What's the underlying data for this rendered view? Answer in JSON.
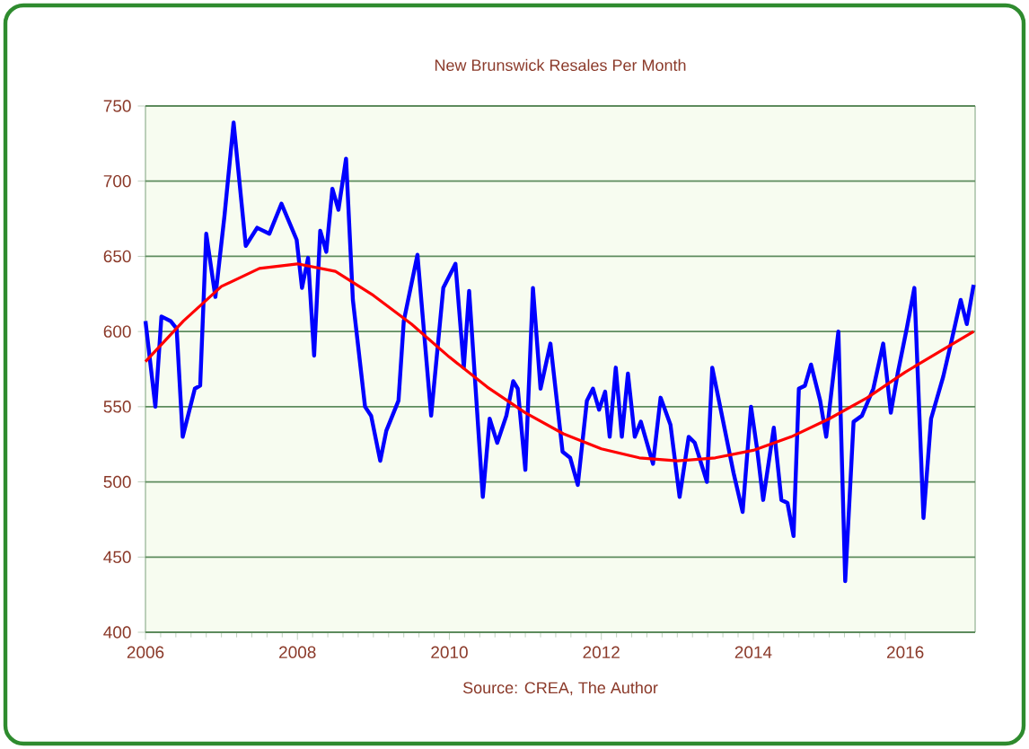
{
  "chart_data": {
    "type": "line",
    "title": "New Brunswick Resales Per Month",
    "annotations": [
      "Source: CREA, The Author"
    ],
    "xlim": [
      2006,
      2016.92
    ],
    "xticks": [
      2006,
      2008,
      2010,
      2012,
      2014,
      2016
    ],
    "ylim": [
      400,
      750
    ],
    "yticks": [
      400,
      450,
      500,
      550,
      600,
      650,
      700,
      750
    ],
    "grid": "y",
    "series": [
      {
        "color": "#0000ff",
        "x": [
          2006.0,
          2006.13,
          2006.21,
          2006.33,
          2006.41,
          2006.49,
          2006.65,
          2006.72,
          2006.8,
          2006.92,
          2007.04,
          2007.16,
          2007.32,
          2007.47,
          2007.63,
          2007.79,
          2007.99,
          2008.06,
          2008.14,
          2008.22,
          2008.3,
          2008.38,
          2008.46,
          2008.54,
          2008.64,
          2008.73,
          2008.89,
          2008.97,
          2009.09,
          2009.17,
          2009.33,
          2009.4,
          2009.58,
          2009.76,
          2009.92,
          2010.08,
          2010.19,
          2010.26,
          2010.44,
          2010.53,
          2010.63,
          2010.75,
          2010.84,
          2010.9,
          2011.0,
          2011.1,
          2011.2,
          2011.33,
          2011.49,
          2011.59,
          2011.69,
          2011.81,
          2011.89,
          2011.97,
          2012.05,
          2012.11,
          2012.19,
          2012.27,
          2012.35,
          2012.44,
          2012.52,
          2012.68,
          2012.78,
          2012.91,
          2013.03,
          2013.15,
          2013.23,
          2013.39,
          2013.46,
          2013.58,
          2013.74,
          2013.86,
          2013.97,
          2014.05,
          2014.13,
          2014.27,
          2014.37,
          2014.45,
          2014.53,
          2014.6,
          2014.68,
          2014.76,
          2014.88,
          2014.96,
          2015.12,
          2015.21,
          2015.32,
          2015.43,
          2015.58,
          2015.71,
          2015.81,
          2015.9,
          2016.02,
          2016.12,
          2016.24,
          2016.34,
          2016.5,
          2016.61,
          2016.73,
          2016.81,
          2016.9
        ],
        "values": [
          607,
          550,
          610,
          607,
          602,
          530,
          562,
          564,
          665,
          623,
          677,
          739,
          657,
          669,
          665,
          685,
          661,
          629,
          649,
          584,
          667,
          653,
          695,
          681,
          715,
          621,
          550,
          544,
          514,
          534,
          554,
          607,
          651,
          544,
          629,
          645,
          576,
          627,
          490,
          542,
          526,
          544,
          567,
          562,
          508,
          629,
          562,
          592,
          520,
          516,
          498,
          554,
          562,
          548,
          560,
          530,
          576,
          530,
          572,
          530,
          540,
          512,
          556,
          538,
          490,
          530,
          526,
          500,
          576,
          546,
          506,
          480,
          550,
          522,
          488,
          536,
          488,
          486,
          464,
          562,
          564,
          578,
          554,
          530,
          600,
          434,
          540,
          544,
          562,
          592,
          546,
          572,
          602,
          629,
          476,
          542,
          570,
          594,
          621,
          605,
          631
        ]
      },
      {
        "type": "line",
        "color": "#ff0000",
        "x": [
          2006.0,
          2006.5,
          2007.0,
          2007.5,
          2008.0,
          2008.5,
          2009.0,
          2009.5,
          2010.0,
          2010.5,
          2011.0,
          2011.5,
          2012.0,
          2012.5,
          2013.0,
          2013.5,
          2014.0,
          2014.5,
          2015.0,
          2015.5,
          2016.0,
          2016.5,
          2016.9
        ],
        "values": [
          580,
          607,
          630,
          642,
          645,
          640,
          624,
          605,
          583,
          563,
          546,
          532,
          522,
          516,
          514,
          516,
          521,
          530,
          542,
          556,
          573,
          588,
          600
        ]
      }
    ]
  }
}
